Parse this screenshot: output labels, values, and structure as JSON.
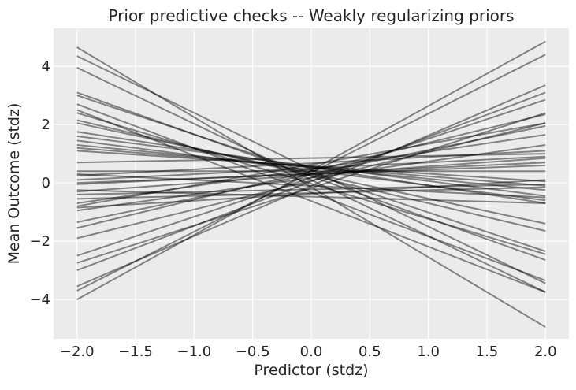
{
  "chart_data": {
    "type": "line",
    "title": "Prior predictive checks -- Weakly regularizing priors",
    "xlabel": "Predictor (stdz)",
    "ylabel": "Mean Outcome (stdz)",
    "xlim": [
      -2.2,
      2.2
    ],
    "ylim": [
      -5.35,
      5.3
    ],
    "xticks": [
      -2.0,
      -1.5,
      -1.0,
      -0.5,
      0.0,
      0.5,
      1.0,
      1.5,
      2.0
    ],
    "xtick_labels": [
      "−2.0",
      "−1.5",
      "−1.0",
      "−0.5",
      "0.0",
      "0.5",
      "1.0",
      "1.5",
      "2.0"
    ],
    "yticks": [
      -4,
      -2,
      0,
      2,
      4
    ],
    "ytick_labels": [
      "−4",
      "−2",
      "0",
      "2",
      "4"
    ],
    "grid": true,
    "background": "#ebebeb",
    "line_color": "#000000",
    "line_opacity": 0.45,
    "series": [
      {
        "x": [
          -2.0,
          2.0
        ],
        "y": [
          4.65,
          -4.95
        ]
      },
      {
        "x": [
          -2.0,
          2.0
        ],
        "y": [
          4.35,
          -3.45
        ]
      },
      {
        "x": [
          -2.0,
          2.0
        ],
        "y": [
          3.95,
          -3.75
        ]
      },
      {
        "x": [
          -2.0,
          2.0
        ],
        "y": [
          3.1,
          -2.65
        ]
      },
      {
        "x": [
          -2.0,
          2.0
        ],
        "y": [
          3.0,
          -2.35
        ]
      },
      {
        "x": [
          -2.0,
          2.0
        ],
        "y": [
          2.7,
          -3.35
        ]
      },
      {
        "x": [
          -2.0,
          2.0
        ],
        "y": [
          2.5,
          -3.75
        ]
      },
      {
        "x": [
          -2.0,
          2.0
        ],
        "y": [
          2.4,
          -2.45
        ]
      },
      {
        "x": [
          -2.0,
          2.0
        ],
        "y": [
          2.15,
          -1.65
        ]
      },
      {
        "x": [
          -2.0,
          2.0
        ],
        "y": [
          2.05,
          -1.4
        ]
      },
      {
        "x": [
          -2.0,
          2.0
        ],
        "y": [
          1.75,
          -0.7
        ]
      },
      {
        "x": [
          -2.0,
          2.0
        ],
        "y": [
          1.6,
          -0.45
        ]
      },
      {
        "x": [
          -2.0,
          2.0
        ],
        "y": [
          1.45,
          -0.6
        ]
      },
      {
        "x": [
          -2.0,
          2.0
        ],
        "y": [
          1.3,
          -0.25
        ]
      },
      {
        "x": [
          -2.0,
          2.0
        ],
        "y": [
          1.2,
          -0.1
        ]
      },
      {
        "x": [
          -2.0,
          2.0
        ],
        "y": [
          1.1,
          0.05
        ]
      },
      {
        "x": [
          -2.0,
          2.0
        ],
        "y": [
          0.7,
          1.0
        ]
      },
      {
        "x": [
          -2.0,
          2.0
        ],
        "y": [
          0.4,
          0.4
        ]
      },
      {
        "x": [
          -2.0,
          2.0
        ],
        "y": [
          0.25,
          1.1
        ]
      },
      {
        "x": [
          -2.0,
          2.0
        ],
        "y": [
          0.1,
          0.9
        ]
      },
      {
        "x": [
          -2.0,
          2.0
        ],
        "y": [
          0.0,
          0.6
        ]
      },
      {
        "x": [
          -2.0,
          2.0
        ],
        "y": [
          -0.05,
          0.7
        ]
      },
      {
        "x": [
          -2.0,
          2.0
        ],
        "y": [
          -0.25,
          -0.7
        ]
      },
      {
        "x": [
          -2.0,
          2.0
        ],
        "y": [
          -0.3,
          0.85
        ]
      },
      {
        "x": [
          -2.0,
          2.0
        ],
        "y": [
          -0.55,
          -0.15
        ]
      },
      {
        "x": [
          -2.0,
          2.0
        ],
        "y": [
          -0.7,
          1.65
        ]
      },
      {
        "x": [
          -2.0,
          2.0
        ],
        "y": [
          -0.8,
          2.05
        ]
      },
      {
        "x": [
          -2.0,
          2.0
        ],
        "y": [
          -0.85,
          0.1
        ]
      },
      {
        "x": [
          -2.0,
          2.0
        ],
        "y": [
          -0.95,
          1.3
        ]
      },
      {
        "x": [
          -2.0,
          2.0
        ],
        "y": [
          -1.35,
          1.95
        ]
      },
      {
        "x": [
          -2.0,
          2.0
        ],
        "y": [
          -1.55,
          2.35
        ]
      },
      {
        "x": [
          -2.0,
          2.0
        ],
        "y": [
          -1.9,
          2.05
        ]
      },
      {
        "x": [
          -2.0,
          2.0
        ],
        "y": [
          -2.5,
          2.85
        ]
      },
      {
        "x": [
          -2.0,
          2.0
        ],
        "y": [
          -2.75,
          2.4
        ]
      },
      {
        "x": [
          -2.0,
          2.0
        ],
        "y": [
          -3.0,
          3.1
        ]
      },
      {
        "x": [
          -2.0,
          2.0
        ],
        "y": [
          -3.55,
          3.35
        ]
      },
      {
        "x": [
          -2.0,
          2.0
        ],
        "y": [
          -3.7,
          4.4
        ]
      },
      {
        "x": [
          -2.0,
          2.0
        ],
        "y": [
          -4.0,
          4.85
        ]
      },
      {
        "x": [
          -2.0,
          2.0
        ],
        "y": [
          0.3,
          -0.5
        ]
      },
      {
        "x": [
          -2.0,
          2.0
        ],
        "y": [
          -0.4,
          -0.05
        ]
      }
    ]
  }
}
